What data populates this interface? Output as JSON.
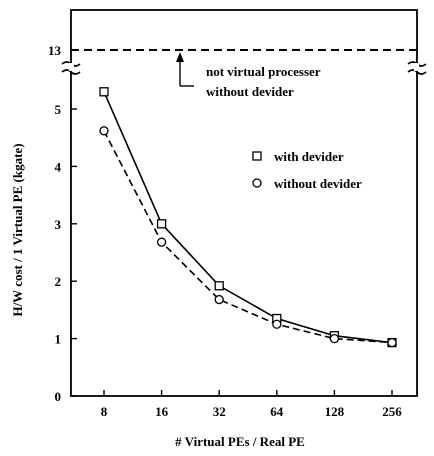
{
  "chart_data": {
    "type": "line",
    "xlabel": "# Virtual PEs / Real PE",
    "ylabel": "H/W cost / 1 Virtual PE (kgate)",
    "x": [
      8,
      16,
      32,
      64,
      128,
      256
    ],
    "x_tick_labels": [
      "8",
      "16",
      "32",
      "64",
      "128",
      "256"
    ],
    "x_scale": "log2",
    "y_tick_labels": [
      "0",
      "1",
      "2",
      "3",
      "4",
      "5",
      "13"
    ],
    "ylim": [
      0,
      13
    ],
    "y_axis_break": [
      5.6,
      12.8
    ],
    "series": [
      {
        "name": "with devider",
        "marker": "square",
        "line": "solid",
        "values": [
          5.3,
          3.0,
          1.92,
          1.35,
          1.05,
          0.93
        ]
      },
      {
        "name": "without devider",
        "marker": "circle",
        "line": "dashed",
        "values": [
          4.62,
          2.68,
          1.68,
          1.25,
          1.0,
          0.93
        ]
      }
    ],
    "reference_line": {
      "value": 13,
      "style": "dashed"
    },
    "annotation": {
      "line1": "not virtual processer",
      "line2": "without devider"
    },
    "legend": {
      "placement": "right",
      "items": [
        "with devider",
        "without devider"
      ]
    },
    "grid": false
  }
}
